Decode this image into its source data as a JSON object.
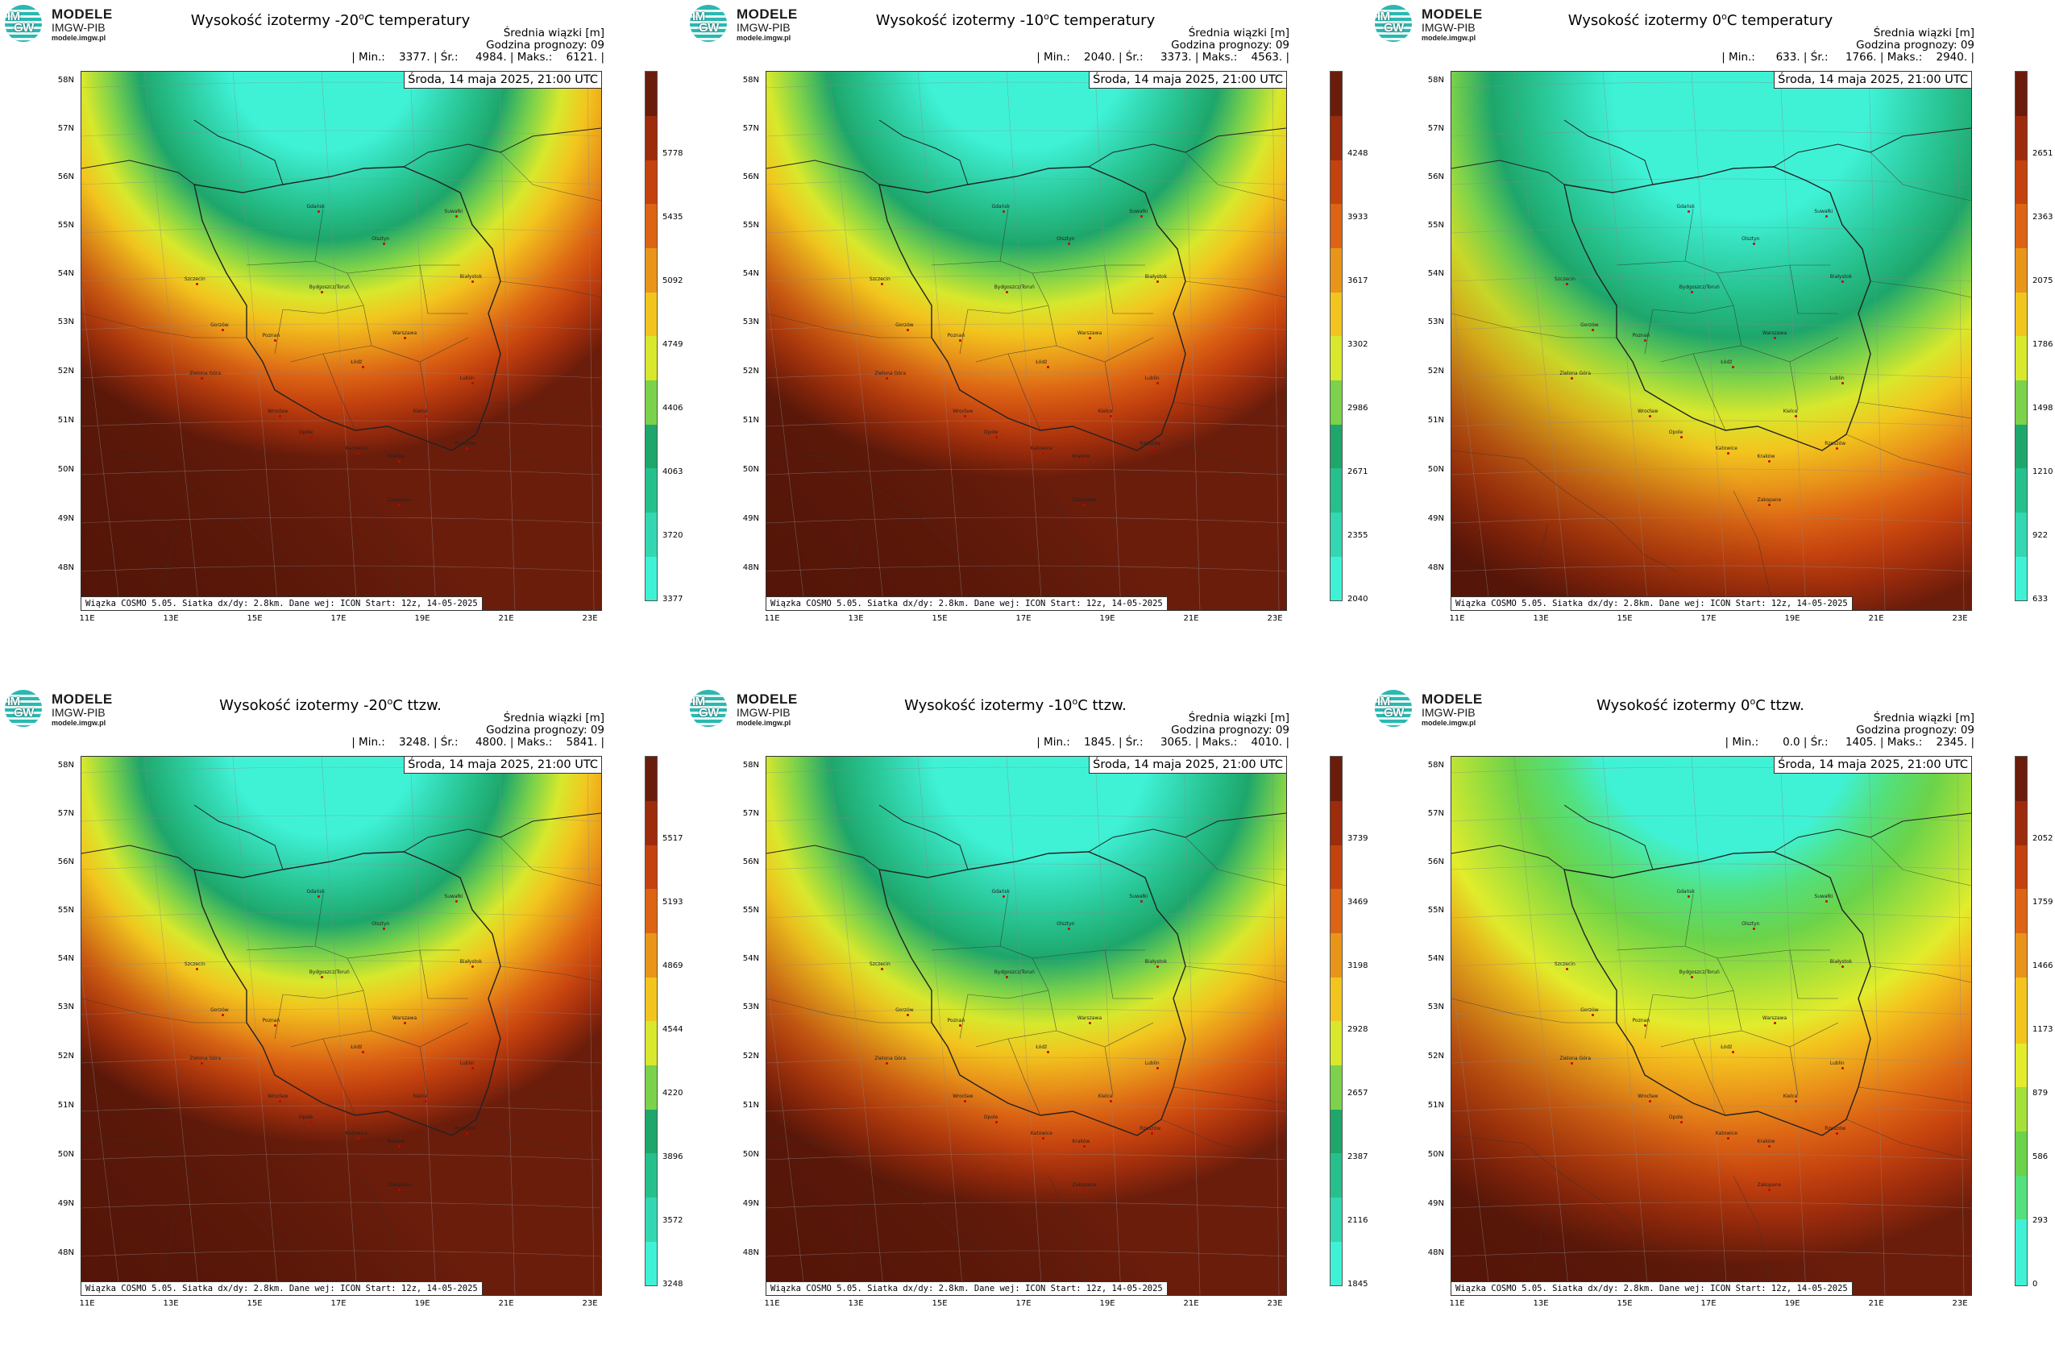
{
  "logo": {
    "letters_top": "IM",
    "letters_bottom": "GW",
    "line1": "MODELE",
    "line2": "IMGW-PIB",
    "line3": "modele.imgw.pl"
  },
  "info_label": "Średnia wiązki [m]",
  "forecast_hour": "Godzina prognozy: 09",
  "date": "Środa, 14 maja 2025, 21:00 UTC",
  "footer": "Wiązka COSMO 5.05. Siatka dx/dy: 2.8km. Dane wej: ICON Start: 12z, 14-05-2025",
  "lat_labels": [
    "58N",
    "57N",
    "56N",
    "55N",
    "54N",
    "53N",
    "52N",
    "51N",
    "50N",
    "49N",
    "48N"
  ],
  "lon_labels": [
    "11E",
    "13E",
    "15E",
    "17E",
    "19E",
    "21E",
    "23E"
  ],
  "cities": [
    "Gdańsk",
    "Olsztyn",
    "Suwałki",
    "Szczecin",
    "Bydgoszcz/Toruń",
    "Białystok",
    "Gorzów",
    "Poznań",
    "Warszawa",
    "Zielona Góra",
    "Łódź",
    "Lublin",
    "Wrocław",
    "Opole",
    "Kielce",
    "Katowice",
    "Kraków",
    "Rzeszów",
    "Zakopane"
  ],
  "panels": [
    {
      "title_pre": "Wysokość izotermy -20",
      "title_sup": "o",
      "title_post": "C temperatury",
      "stats": "| Min.:    3377. | Śr.:     4984. | Maks.:    6121. |",
      "ticks": [
        "3377",
        "3720",
        "4063",
        "4406",
        "4749",
        "5092",
        "5435",
        "5778"
      ],
      "pattern": "deep",
      "palette": "green"
    },
    {
      "title_pre": "Wysokość izotermy -10",
      "title_sup": "o",
      "title_post": "C temperatury",
      "stats": "| Min.:    2040. | Śr.:     3373. | Maks.:    4563. |",
      "ticks": [
        "2040",
        "2355",
        "2671",
        "2986",
        "3302",
        "3617",
        "3933",
        "4248"
      ],
      "pattern": "mid",
      "palette": "green"
    },
    {
      "title_pre": "Wysokość izotermy 0",
      "title_sup": "o",
      "title_post": "C temperatury",
      "stats": "| Min.:      633. | Śr.:     1766. | Maks.:    2940. |",
      "ticks": [
        "633",
        "922",
        "1210",
        "1498",
        "1786",
        "2075",
        "2363",
        "2651"
      ],
      "pattern": "wide",
      "palette": "green"
    },
    {
      "title_pre": "Wysokość izotermy -20",
      "title_sup": "o",
      "title_post": "C ttzw.",
      "stats": "| Min.:    3248. | Śr.:     4800. | Maks.:    5841. |",
      "ticks": [
        "3248",
        "3572",
        "3896",
        "4220",
        "4544",
        "4869",
        "5193",
        "5517"
      ],
      "pattern": "deep",
      "palette": "green"
    },
    {
      "title_pre": "Wysokość izotermy -10",
      "title_sup": "o",
      "title_post": "C ttzw.",
      "stats": "| Min.:    1845. | Śr.:     3065. | Maks.:    4010. |",
      "ticks": [
        "1845",
        "2116",
        "2387",
        "2657",
        "2928",
        "3198",
        "3469",
        "3739"
      ],
      "pattern": "mid2",
      "palette": "green"
    },
    {
      "title_pre": "Wysokość izotermy 0",
      "title_sup": "o",
      "title_post": "C ttzw.",
      "stats": "| Min.:       0.0 | Śr.:     1405. | Maks.:    2345. |",
      "ticks": [
        "0",
        "293",
        "586",
        "879",
        "1173",
        "1466",
        "1759",
        "2052"
      ],
      "pattern": "wide2",
      "palette": "lime"
    }
  ],
  "colors": {
    "background": "#ffffff",
    "border": "#333333"
  }
}
